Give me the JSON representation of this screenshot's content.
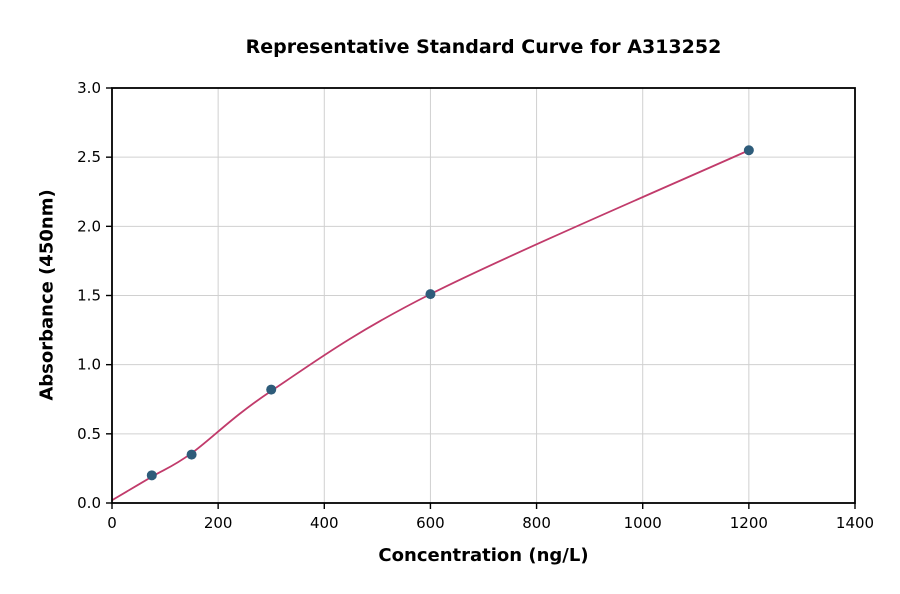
{
  "chart_data": {
    "type": "scatter",
    "title": "Representative Standard Curve for A313252",
    "xlabel": "Concentration (ng/L)",
    "ylabel": "Absorbance (450nm)",
    "xlim": [
      0,
      1400
    ],
    "ylim": [
      0.0,
      3.0
    ],
    "xticks": [
      0,
      200,
      400,
      600,
      800,
      1000,
      1200,
      1400
    ],
    "xtick_labels": [
      "0",
      "200",
      "400",
      "600",
      "800",
      "1000",
      "1200",
      "1400"
    ],
    "yticks": [
      0.0,
      0.5,
      1.0,
      1.5,
      2.0,
      2.5,
      3.0
    ],
    "ytick_labels": [
      "0.0",
      "0.5",
      "1.0",
      "1.5",
      "2.0",
      "2.5",
      "3.0"
    ],
    "grid": true,
    "grid_color": "#d0d0d0",
    "axis_color": "#000000",
    "tick_label_color": "#000000",
    "series": [
      {
        "name": "fit-curve",
        "type": "line",
        "color": "#c13b6b",
        "x": [
          0,
          75,
          150,
          300,
          600,
          1200
        ],
        "y": [
          0.02,
          0.19,
          0.36,
          0.81,
          1.51,
          2.55
        ]
      },
      {
        "name": "standard-points",
        "type": "scatter",
        "color": "#2e5c7a",
        "x": [
          75,
          150,
          300,
          600,
          1200
        ],
        "y": [
          0.2,
          0.35,
          0.82,
          1.51,
          2.55
        ]
      }
    ]
  }
}
